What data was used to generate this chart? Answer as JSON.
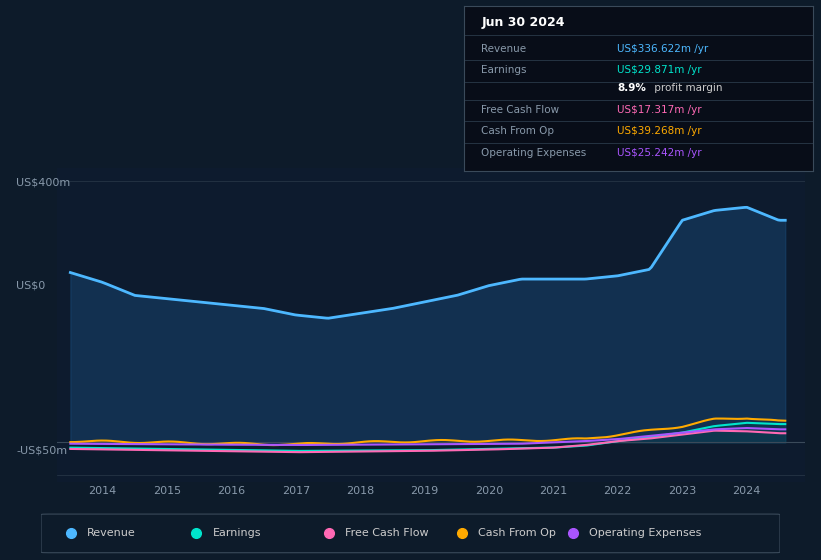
{
  "background_color": "#0d1b2a",
  "chart_bg_color": "#0d1b2e",
  "ylabel_top": "US$400m",
  "ylabel_zero": "US$0",
  "ylabel_neg": "-US$50m",
  "x_labels": [
    "2014",
    "2015",
    "2016",
    "2017",
    "2018",
    "2019",
    "2020",
    "2021",
    "2022",
    "2023",
    "2024"
  ],
  "legend_items": [
    {
      "label": "Revenue",
      "color": "#4db8ff"
    },
    {
      "label": "Earnings",
      "color": "#00e5cc"
    },
    {
      "label": "Free Cash Flow",
      "color": "#ff69b4"
    },
    {
      "label": "Cash From Op",
      "color": "#ffaa00"
    },
    {
      "label": "Operating Expenses",
      "color": "#aa55ff"
    }
  ],
  "info_box": {
    "title": "Jun 30 2024",
    "rows": [
      {
        "label": "Revenue",
        "value": "US$336.622m /yr",
        "value_color": "#4db8ff"
      },
      {
        "label": "Earnings",
        "value": "US$29.871m /yr",
        "value_color": "#00e5cc"
      },
      {
        "label": "",
        "value": "8.9% profit margin",
        "value_color": "#cccccc",
        "bold_part": "8.9%"
      },
      {
        "label": "Free Cash Flow",
        "value": "US$17.317m /yr",
        "value_color": "#ff69b4"
      },
      {
        "label": "Cash From Op",
        "value": "US$39.268m /yr",
        "value_color": "#ffaa00"
      },
      {
        "label": "Operating Expenses",
        "value": "US$25.242m /yr",
        "value_color": "#aa55ff"
      }
    ]
  },
  "ylim": [
    -60,
    420
  ],
  "xlim": [
    2013.3,
    2024.9
  ]
}
